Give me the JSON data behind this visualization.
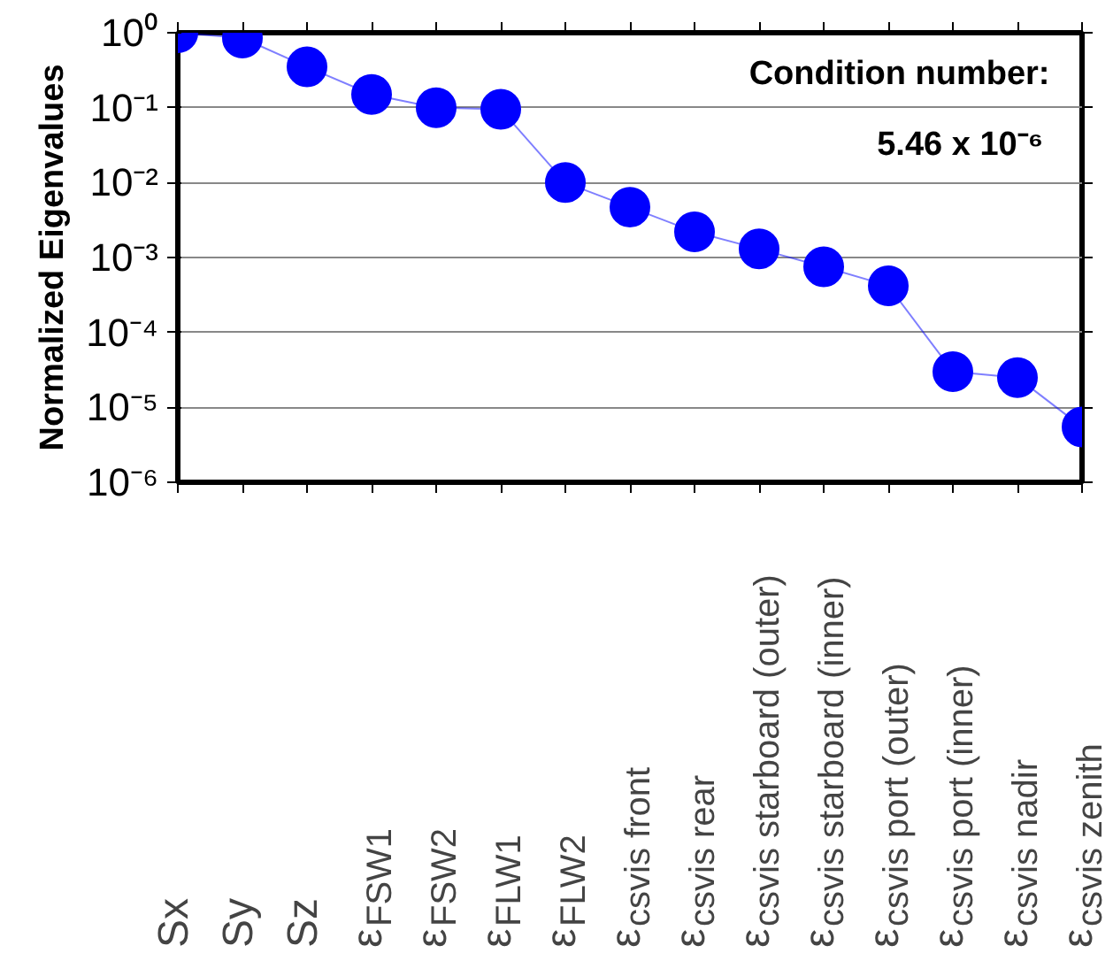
{
  "chart_data": {
    "type": "line",
    "ylabel": "Normalized Eigenvalues",
    "categories": [
      "Sx",
      "Sy",
      "Sz",
      "ε$_{FSW1}$",
      "ε$_{FSW2}$",
      "ε$_{FLW1}$",
      "ε$_{FLW2}$",
      "ε$_{csvis front}$",
      "ε$_{csvis rear}$",
      "ε$_{csvis starboard (outer)}$",
      "ε$_{csvis starboard (inner)}$",
      "ε$_{csvis port (outer)}$",
      "ε$_{csvis port (inner)}$",
      "ε$_{csvis nadir}$",
      "ε$_{csvis zenith}$"
    ],
    "series": [
      {
        "color": "#0000ff",
        "values": [
          1,
          0.85,
          0.35,
          0.15,
          0.1,
          0.095,
          0.01,
          0.0047,
          0.0022,
          0.0013,
          0.00075,
          0.00042,
          3e-05,
          2.5e-05,
          5.46e-06
        ]
      }
    ],
    "log": "y",
    "ylim": [
      1e-06,
      1
    ],
    "yticks": [
      {
        "value": 1e-06,
        "label": "10⁻⁶"
      },
      {
        "value": 1e-05,
        "label": "10⁻⁵"
      },
      {
        "value": 0.0001,
        "label": "10⁻⁴"
      },
      {
        "value": 0.001,
        "label": "10⁻³"
      },
      {
        "value": 0.01,
        "label": "10⁻²"
      },
      {
        "value": 0.1,
        "label": "10⁻¹"
      },
      {
        "value": 1,
        "label": "10⁰"
      }
    ],
    "grid": "y",
    "marker": "circle",
    "line_style": "solid",
    "annotations": [
      "Condition number:",
      "5.46 x 10⁻⁶"
    ]
  }
}
